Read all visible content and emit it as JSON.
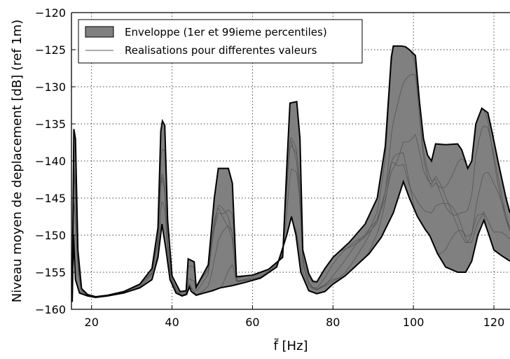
{
  "chart_data": {
    "type": "area",
    "title": "",
    "xlabel": "f̃ [Hz]",
    "ylabel": "Niveau moyen de deplacement [dB] (ref 1m)",
    "xlim": [
      15,
      124
    ],
    "ylim": [
      -160,
      -120
    ],
    "xticks": [
      20,
      40,
      60,
      80,
      100,
      120
    ],
    "yticks": [
      -160,
      -155,
      -150,
      -145,
      -140,
      -135,
      -130,
      -125,
      -120
    ],
    "xtick_labels": [
      "20",
      "40",
      "60",
      "80",
      "100",
      "120"
    ],
    "ytick_labels": [
      "−160",
      "−155",
      "−150",
      "−145",
      "−140",
      "−135",
      "−130",
      "−125",
      "−120"
    ],
    "grid": true,
    "legend_position": "top-left",
    "colors": {
      "envelope_fill": "#808080",
      "envelope_edge": "#000000",
      "realisations": "#555555",
      "grid": "#000000"
    },
    "legend": [
      {
        "label": "Enveloppe (1er et 99ieme percentiles)",
        "kind": "patch"
      },
      {
        "label": "Realisations pour differentes valeurs",
        "kind": "line"
      }
    ],
    "series": [
      {
        "name": "Enveloppe (1er et 99ieme percentiles)",
        "kind": "envelope",
        "upper": [
          [
            15.2,
            -158
          ],
          [
            15.6,
            -135.7
          ],
          [
            16.0,
            -137
          ],
          [
            16.6,
            -152
          ],
          [
            17.5,
            -157.2
          ],
          [
            19,
            -158
          ],
          [
            21,
            -158.3
          ],
          [
            24,
            -158.1
          ],
          [
            28,
            -157.6
          ],
          [
            32,
            -156.6
          ],
          [
            35,
            -154.5
          ],
          [
            36.5,
            -149
          ],
          [
            37.2,
            -136
          ],
          [
            37.6,
            -134.6
          ],
          [
            38.2,
            -135.2
          ],
          [
            38.9,
            -148
          ],
          [
            40,
            -155.5
          ],
          [
            42,
            -157.6
          ],
          [
            43.5,
            -157.5
          ],
          [
            44.0,
            -153.2
          ],
          [
            45.5,
            -153.6
          ],
          [
            46.0,
            -157
          ],
          [
            47,
            -156
          ],
          [
            49,
            -154
          ],
          [
            50.5,
            -145
          ],
          [
            51.5,
            -141
          ],
          [
            54,
            -141
          ],
          [
            55,
            -143
          ],
          [
            56,
            -155.6
          ],
          [
            60,
            -155.4
          ],
          [
            64,
            -154.6
          ],
          [
            67.5,
            -153
          ],
          [
            68.6,
            -140
          ],
          [
            69.3,
            -132.2
          ],
          [
            71,
            -132
          ],
          [
            71.8,
            -137
          ],
          [
            72.5,
            -152
          ],
          [
            74,
            -155.2
          ],
          [
            75,
            -156.2
          ],
          [
            76,
            -156.3
          ],
          [
            78,
            -154.5
          ],
          [
            80,
            -153
          ],
          [
            84,
            -151
          ],
          [
            88,
            -148.5
          ],
          [
            91,
            -145
          ],
          [
            93,
            -138
          ],
          [
            94.5,
            -126
          ],
          [
            95,
            -124.5
          ],
          [
            97,
            -124.5
          ],
          [
            98,
            -124.6
          ],
          [
            99,
            -125
          ],
          [
            100.5,
            -125.8
          ],
          [
            101.5,
            -132
          ],
          [
            102.5,
            -137
          ],
          [
            103.5,
            -139.2
          ],
          [
            104.5,
            -140
          ],
          [
            105.5,
            -137.7
          ],
          [
            108,
            -137.8
          ],
          [
            111,
            -137.7
          ],
          [
            112,
            -138.5
          ],
          [
            113.5,
            -141
          ],
          [
            114.5,
            -140
          ],
          [
            115.5,
            -135
          ],
          [
            117,
            -132.9
          ],
          [
            118.5,
            -133.5
          ],
          [
            119.5,
            -136
          ],
          [
            121,
            -140
          ],
          [
            123,
            -145
          ],
          [
            124,
            -147
          ]
        ],
        "lower": [
          [
            15.2,
            -159
          ],
          [
            15.5,
            -150
          ],
          [
            16.0,
            -156
          ],
          [
            17,
            -157.8
          ],
          [
            19,
            -158.2
          ],
          [
            21,
            -158.4
          ],
          [
            24,
            -158.2
          ],
          [
            28,
            -157.8
          ],
          [
            32,
            -157.1
          ],
          [
            35,
            -156
          ],
          [
            36.5,
            -153
          ],
          [
            37.5,
            -148.5
          ],
          [
            38.5,
            -152
          ],
          [
            39.5,
            -156
          ],
          [
            41,
            -157.8
          ],
          [
            42.5,
            -158.2
          ],
          [
            43.6,
            -158
          ],
          [
            44.3,
            -157
          ],
          [
            44.8,
            -157.6
          ],
          [
            46,
            -158.1
          ],
          [
            48,
            -157.8
          ],
          [
            50,
            -157.5
          ],
          [
            52,
            -157.1
          ],
          [
            55,
            -156.8
          ],
          [
            58,
            -156.4
          ],
          [
            62,
            -155.8
          ],
          [
            66,
            -154.3
          ],
          [
            68.5,
            -150
          ],
          [
            69.7,
            -147.5
          ],
          [
            70.8,
            -150
          ],
          [
            72,
            -155
          ],
          [
            74,
            -157.5
          ],
          [
            76,
            -157.9
          ],
          [
            78,
            -157.6
          ],
          [
            80,
            -156.6
          ],
          [
            83,
            -155.5
          ],
          [
            86,
            -154
          ],
          [
            89,
            -152.5
          ],
          [
            92,
            -150.3
          ],
          [
            95,
            -147
          ],
          [
            97.5,
            -142.8
          ],
          [
            99,
            -145
          ],
          [
            101,
            -147.5
          ],
          [
            103,
            -149.3
          ],
          [
            104,
            -150
          ],
          [
            106,
            -152.5
          ],
          [
            108,
            -154.3
          ],
          [
            111,
            -155
          ],
          [
            113,
            -155
          ],
          [
            114.5,
            -153.5
          ],
          [
            116,
            -150
          ],
          [
            117.5,
            -148
          ],
          [
            118.8,
            -150
          ],
          [
            120,
            -152
          ],
          [
            122,
            -152.8
          ],
          [
            124,
            -153.5
          ]
        ]
      }
    ]
  }
}
